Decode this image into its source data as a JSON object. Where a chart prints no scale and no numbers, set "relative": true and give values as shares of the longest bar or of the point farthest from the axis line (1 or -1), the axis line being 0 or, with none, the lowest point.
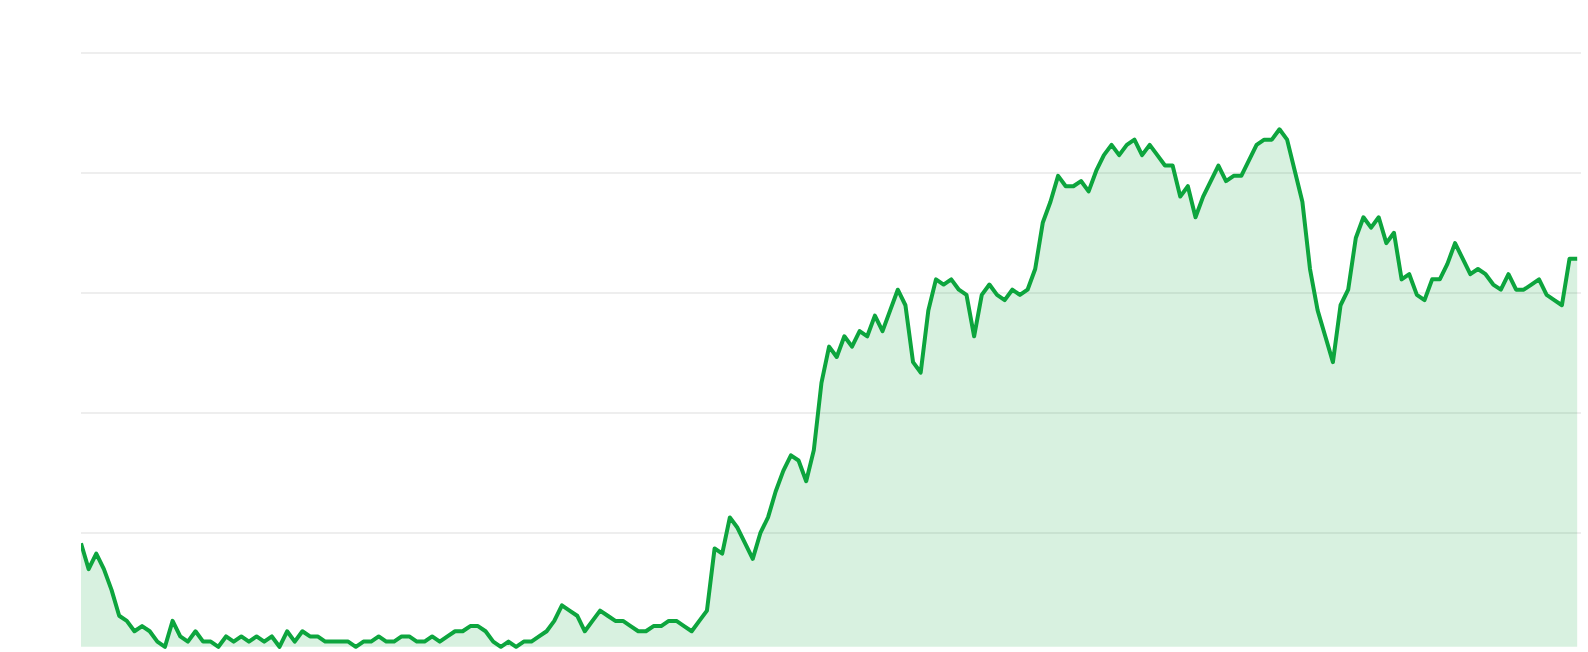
{
  "chart_data": {
    "type": "area",
    "relative": true,
    "grid": "y",
    "color": "#0da53e",
    "categories": [
      null,
      null,
      null,
      null,
      null,
      null,
      null,
      null,
      null,
      null,
      null,
      null,
      null,
      null,
      null,
      null,
      null,
      null,
      null,
      null,
      null,
      null,
      null,
      null,
      null,
      null,
      null,
      null,
      null,
      null,
      null,
      null,
      null,
      null,
      null,
      null,
      null,
      null,
      null,
      null,
      null,
      null,
      null,
      null,
      null,
      null,
      null,
      null,
      null,
      null,
      null,
      null,
      null,
      null,
      null,
      null,
      null,
      null,
      null,
      null,
      null,
      null,
      null,
      null,
      null,
      null,
      null,
      null,
      null,
      null,
      null,
      null,
      null,
      null,
      null,
      null,
      null,
      null,
      null,
      null,
      null,
      null,
      null,
      null,
      null,
      null,
      null,
      null,
      null,
      null,
      null,
      null,
      null,
      null,
      null,
      null,
      null,
      null,
      null,
      null,
      null,
      null,
      null,
      null,
      null,
      null,
      null,
      null,
      null,
      null,
      null,
      null,
      null,
      null,
      null,
      null,
      null,
      null,
      null,
      null,
      null,
      null,
      null,
      null,
      null,
      null,
      null,
      null,
      null,
      null,
      null,
      null,
      null,
      null,
      null,
      null,
      null,
      null,
      null,
      null,
      null,
      null,
      null,
      null,
      null,
      null,
      null,
      null,
      null,
      null,
      null,
      null,
      null,
      null,
      null,
      null,
      null,
      null,
      null,
      null,
      null,
      null,
      null,
      null,
      null,
      null,
      null,
      null,
      null,
      null,
      null,
      null,
      null,
      null,
      null,
      null,
      null,
      null,
      null,
      null,
      null,
      null,
      null,
      null,
      null,
      null,
      null,
      null,
      null,
      null,
      null,
      null,
      null,
      null,
      null,
      null,
      null
    ],
    "values": [
      0.2,
      0.15,
      0.18,
      0.15,
      0.11,
      0.06,
      0.05,
      0.03,
      0.04,
      0.03,
      0.01,
      0,
      0.05,
      0.02,
      0.01,
      0.03,
      0.01,
      0.01,
      0.0,
      0.02,
      0.01,
      0.02,
      0.01,
      0.02,
      0.01,
      0.02,
      0,
      0.03,
      0.01,
      0.03,
      0.02,
      0.02,
      0.01,
      0.01,
      0.01,
      0.01,
      0,
      0.01,
      0.01,
      0.02,
      0.01,
      0.01,
      0.02,
      0.02,
      0.01,
      0.01,
      0.02,
      0.01,
      0.02,
      0.03,
      0.03,
      0.04,
      0.04,
      0.03,
      0.01,
      0.0,
      0.01,
      0.0,
      0.01,
      0.01,
      0.02,
      0.03,
      0.05,
      0.08,
      0.07,
      0.06,
      0.03,
      0.05,
      0.07,
      0.06,
      0.05,
      0.05,
      0.04,
      0.03,
      0.03,
      0.04,
      0.04,
      0.05,
      0.05,
      0.04,
      0.03,
      0.05,
      0.07,
      0.19,
      0.18,
      0.25,
      0.23,
      0.2,
      0.17,
      0.22,
      0.25,
      0.3,
      0.34,
      0.37,
      0.36,
      0.32,
      0.38,
      0.51,
      0.58,
      0.56,
      0.6,
      0.58,
      0.61,
      0.6,
      0.64,
      0.61,
      0.65,
      0.69,
      0.66,
      0.55,
      0.53,
      0.65,
      0.71,
      0.7,
      0.71,
      0.69,
      0.68,
      0.6,
      0.68,
      0.7,
      0.68,
      0.67,
      0.69,
      0.68,
      0.69,
      0.73,
      0.82,
      0.86,
      0.91,
      0.89,
      0.89,
      0.9,
      0.88,
      0.92,
      0.95,
      0.97,
      0.95,
      0.97,
      0.98,
      0.95,
      0.97,
      0.95,
      0.93,
      0.93,
      0.87,
      0.89,
      0.83,
      0.87,
      0.9,
      0.93,
      0.9,
      0.91,
      0.91,
      0.94,
      0.97,
      0.98,
      0.98,
      1,
      0.98,
      0.92,
      0.86,
      0.73,
      0.65,
      0.6,
      0.55,
      0.66,
      0.69,
      0.79,
      0.83,
      0.81,
      0.83,
      0.78,
      0.8,
      0.71,
      0.72,
      0.68,
      0.67,
      0.71,
      0.71,
      0.74,
      0.78,
      0.75,
      0.72,
      0.73,
      0.72,
      0.7,
      0.69,
      0.72,
      0.69,
      0.69,
      0.7,
      0.71,
      0.68,
      0.67,
      0.66,
      0.75,
      0.75
    ]
  }
}
